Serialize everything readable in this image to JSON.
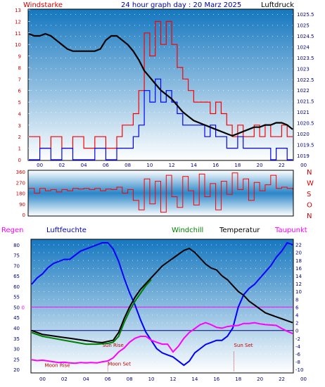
{
  "header": {
    "left_label": "Windstarke",
    "center_label": "24 hour graph day : 20 Marz 2025",
    "right_label": "Luftdruck"
  },
  "colors": {
    "wind_gust": "#ff0000",
    "wind_avg": "#0000ff",
    "pressure": "#000000",
    "direction": "#ff0000",
    "humidity": "#0000ff",
    "temperature": "#000000",
    "windchill": "#008000",
    "dewpoint": "#ff00ff",
    "rain_label": "#ff00ff",
    "panel_grad_top": "#1e7fc4",
    "panel_grad_bottom": "#ffffff"
  },
  "chart_data": [
    {
      "type": "line",
      "name": "wind_pressure",
      "x_ticks": [
        "00",
        "02",
        "04",
        "06",
        "08",
        "10",
        "12",
        "14",
        "16",
        "18",
        "20",
        "22",
        "00"
      ],
      "left_ticks": [
        "0",
        "1",
        "2",
        "3",
        "4",
        "5",
        "6",
        "7",
        "8",
        "9",
        "10",
        "11",
        "12",
        "13"
      ],
      "right_ticks": [
        "1019",
        "1019.5",
        "1020",
        "1020.5",
        "1021",
        "1021.5",
        "1022",
        "1022.5",
        "1023",
        "1023.5",
        "1024",
        "1024.5",
        "1025",
        "1025.5"
      ],
      "ylim_left": [
        0,
        13
      ],
      "ylim_right": [
        1018.8,
        1025.7
      ],
      "pressure": {
        "x": [
          0,
          0.5,
          1,
          1.5,
          2,
          2.5,
          3,
          3.5,
          4,
          4.5,
          5,
          5.5,
          6,
          6.5,
          7,
          7.5,
          8,
          8.5,
          9,
          9.5,
          10,
          10.5,
          11,
          11.5,
          12,
          12.5,
          13,
          13.5,
          14,
          14.5,
          15,
          15.5,
          16,
          16.5,
          17,
          17.5,
          18,
          18.5,
          19,
          19.5,
          20,
          20.5,
          21,
          21.5,
          22,
          22.5,
          23,
          23.5,
          24
        ],
        "values": [
          1024.6,
          1024.5,
          1024.5,
          1024.6,
          1024.5,
          1024.3,
          1024.1,
          1023.9,
          1023.8,
          1023.8,
          1023.8,
          1023.8,
          1023.8,
          1023.9,
          1024.3,
          1024.5,
          1024.5,
          1024.3,
          1024.1,
          1023.8,
          1023.4,
          1022.9,
          1022.6,
          1022.3,
          1022.0,
          1021.8,
          1021.6,
          1021.3,
          1021.0,
          1020.8,
          1020.6,
          1020.5,
          1020.4,
          1020.3,
          1020.2,
          1020.1,
          1020.0,
          1019.9,
          1020.0,
          1020.1,
          1020.2,
          1020.3,
          1020.3,
          1020.4,
          1020.4,
          1020.5,
          1020.5,
          1020.4,
          1020.2
        ]
      },
      "wind_gust": {
        "x": [
          0,
          1,
          2,
          3,
          4,
          5,
          6,
          7,
          8,
          8.5,
          9,
          9.5,
          10,
          10.5,
          11,
          11.5,
          12,
          12.5,
          13,
          13.5,
          14,
          14.5,
          15,
          15.5,
          16,
          16.5,
          17,
          17.5,
          18,
          18.5,
          19,
          19.5,
          20,
          20.5,
          21,
          21.5,
          22,
          22.5,
          23,
          23.5,
          24
        ],
        "values": [
          2,
          1,
          2,
          1,
          2,
          1,
          2,
          1,
          2,
          3,
          3,
          4,
          6,
          11,
          9,
          12,
          10,
          12,
          10,
          8,
          7,
          6,
          5,
          5,
          5,
          4,
          5,
          4,
          3,
          2,
          3,
          2,
          2,
          3,
          2,
          3,
          2,
          2,
          3,
          2,
          2
        ]
      },
      "wind_avg": {
        "x": [
          0,
          1,
          2,
          3,
          4,
          5,
          6,
          7,
          8,
          8.5,
          9,
          9.5,
          10,
          10.5,
          11,
          11.5,
          12,
          12.5,
          13,
          13.5,
          14,
          14.5,
          15,
          15.5,
          16,
          16.5,
          17,
          17.5,
          18,
          18.5,
          19,
          19.5,
          20,
          20.5,
          21,
          21.5,
          22,
          22.5,
          23,
          23.5,
          24
        ],
        "values": [
          0,
          1,
          0,
          1,
          0,
          0,
          1,
          0,
          1,
          1,
          1,
          2,
          3,
          6,
          5,
          7,
          5,
          6,
          5,
          4,
          3,
          3,
          3,
          3,
          2,
          3,
          2,
          2,
          1,
          1,
          2,
          1,
          1,
          1,
          1,
          1,
          0,
          1,
          1,
          0,
          0
        ]
      }
    },
    {
      "type": "line",
      "name": "wind_direction",
      "right_labels": [
        "N",
        "W",
        "S",
        "O",
        "N"
      ],
      "left_ticks": [
        "360",
        "270",
        "180",
        "90",
        "0"
      ],
      "ylim": [
        0,
        360
      ],
      "x": [
        0,
        0.5,
        1,
        1.5,
        2,
        2.5,
        3,
        3.5,
        4,
        4.5,
        5,
        5.5,
        6,
        6.5,
        7,
        7.5,
        8,
        8.5,
        9,
        9.5,
        10,
        10.5,
        11,
        11.5,
        12,
        12.5,
        13,
        13.5,
        14,
        14.5,
        15,
        15.5,
        16,
        16.5,
        17,
        17.5,
        18,
        18.5,
        19,
        19.5,
        20,
        20.5,
        21,
        21.5,
        22,
        22.5,
        23,
        23.5,
        24
      ],
      "values": [
        220,
        180,
        220,
        200,
        210,
        190,
        210,
        200,
        220,
        215,
        220,
        210,
        220,
        200,
        215,
        210,
        230,
        180,
        210,
        120,
        40,
        300,
        90,
        280,
        20,
        330,
        150,
        60,
        320,
        200,
        80,
        340,
        150,
        260,
        40,
        280,
        170,
        350,
        210,
        300,
        120,
        270,
        200,
        250,
        330,
        220,
        230,
        220,
        210
      ]
    },
    {
      "type": "line",
      "name": "temperature_humidity",
      "top_labels": [
        "Regen",
        "Luftfeuchte",
        "Windchill",
        "Temperatur",
        "Taupunkt"
      ],
      "left_ticks": [
        "80",
        "75",
        "70",
        "65",
        "60",
        "55",
        "50",
        "45",
        "40",
        "35",
        "30",
        "25",
        "20"
      ],
      "right_ticks": [
        "22",
        "20",
        "18",
        "16",
        "14",
        "12",
        "10",
        "8",
        "6",
        "4",
        "2",
        "0",
        "-2",
        "-4",
        "-6",
        "-8",
        "-10"
      ],
      "rain_axis_label": "0",
      "ylim_humidity": [
        19,
        82
      ],
      "ylim_temperature": [
        -10.5,
        23
      ],
      "humidity": {
        "x": [
          0,
          0.5,
          1,
          1.5,
          2,
          2.5,
          3,
          3.5,
          4,
          4.5,
          5,
          5.5,
          6,
          6.5,
          7,
          7.5,
          8,
          8.5,
          9,
          9.5,
          10,
          10.5,
          11,
          11.5,
          12,
          12.5,
          13,
          13.5,
          14,
          14.5,
          15,
          15.5,
          16,
          16.5,
          17,
          17.5,
          18,
          18.5,
          19,
          19.5,
          20,
          20.5,
          21,
          21.5,
          22,
          22.5,
          23,
          23.5,
          24
        ],
        "values": [
          61,
          64,
          66,
          69,
          71,
          72,
          73,
          73,
          75,
          77,
          78,
          79,
          80,
          81,
          81,
          78,
          72,
          64,
          57,
          51,
          44,
          38,
          34,
          30,
          28,
          27,
          26,
          24,
          22,
          24,
          28,
          30,
          32,
          33,
          34,
          34,
          36,
          40,
          50,
          56,
          59,
          61,
          64,
          67,
          70,
          74,
          77,
          81,
          80
        ]
      },
      "temperature": {
        "x": [
          0,
          0.5,
          1,
          1.5,
          2,
          2.5,
          3,
          3.5,
          4,
          4.5,
          5,
          5.5,
          6,
          6.5,
          7,
          7.5,
          8,
          8.5,
          9,
          9.5,
          10,
          10.5,
          11,
          11.5,
          12,
          12.5,
          13,
          13.5,
          14,
          14.5,
          15,
          15.5,
          16,
          16.5,
          17,
          17.5,
          18,
          18.5,
          19,
          19.5,
          20,
          20.5,
          21,
          21.5,
          22,
          22.5,
          23,
          23.5,
          24
        ],
        "values": [
          0,
          -0.5,
          -1,
          -1.2,
          -1.4,
          -1.6,
          -1.8,
          -2,
          -2.2,
          -2.4,
          -2.6,
          -2.8,
          -3,
          -3.1,
          -2.8,
          -2.5,
          -0.5,
          3,
          6,
          8.5,
          10.5,
          12,
          13.5,
          15,
          16.5,
          17.5,
          18.5,
          19.5,
          20.5,
          21,
          20,
          18.5,
          17,
          16,
          15.5,
          14,
          13,
          11.5,
          10,
          9,
          7.5,
          6.5,
          5.5,
          4.5,
          4,
          3.5,
          3,
          2.5,
          2
        ]
      },
      "dewpoint": {
        "x": [
          0,
          0.5,
          1,
          1.5,
          2,
          2.5,
          3,
          3.5,
          4,
          4.5,
          5,
          5.5,
          6,
          6.5,
          7,
          7.5,
          8,
          8.5,
          9,
          9.5,
          10,
          10.5,
          11,
          11.5,
          12,
          12.5,
          13,
          13.5,
          14,
          14.5,
          15,
          15.5,
          16,
          16.5,
          17,
          17.5,
          18,
          18.5,
          19,
          19.5,
          20,
          20.5,
          21,
          21.5,
          22,
          22.5,
          23,
          23.5,
          24
        ],
        "values": [
          -7.5,
          -7.7,
          -7.6,
          -7.8,
          -8,
          -8.2,
          -8.1,
          -8.3,
          -8.4,
          -8.2,
          -8.3,
          -8.2,
          -8.3,
          -8,
          -7.8,
          -7,
          -5.5,
          -4.5,
          -3,
          -2,
          -1.5,
          -1.5,
          -2.5,
          -3,
          -3.5,
          -3.5,
          -5.5,
          -4,
          -2,
          -0.5,
          0.5,
          1.5,
          2,
          1.5,
          0.8,
          0.6,
          1,
          1.2,
          1.3,
          1.8,
          1.8,
          2,
          1.7,
          1.5,
          1.4,
          1.3,
          0.5,
          -0.2,
          -0.8
        ]
      },
      "windchill": {
        "x": [
          0,
          1,
          2,
          3,
          4,
          5,
          6,
          7,
          7.5,
          8,
          8.5,
          9,
          9.5,
          10,
          10.5,
          11
        ],
        "values": [
          -0.5,
          -1.5,
          -2,
          -2.5,
          -3,
          -3.5,
          -3.5,
          -3.3,
          -3,
          -1.5,
          2,
          5,
          7.5,
          9.5,
          11.5,
          13
        ]
      },
      "x_ticks": [
        "00",
        "02",
        "04",
        "06",
        "08",
        "10",
        "12",
        "14",
        "16",
        "18",
        "20",
        "22",
        "00"
      ],
      "annotations": [
        {
          "text": "Sun Rise",
          "x": 6.5,
          "y_temp": -4.2
        },
        {
          "text": "Moon Rise",
          "x": 1.2,
          "y_temp": -9.3
        },
        {
          "text": "Moon Set",
          "x": 7.0,
          "y_temp": -9.0
        },
        {
          "text": "Sun Set",
          "x": 18.6,
          "y_temp": -4.2
        }
      ]
    }
  ]
}
